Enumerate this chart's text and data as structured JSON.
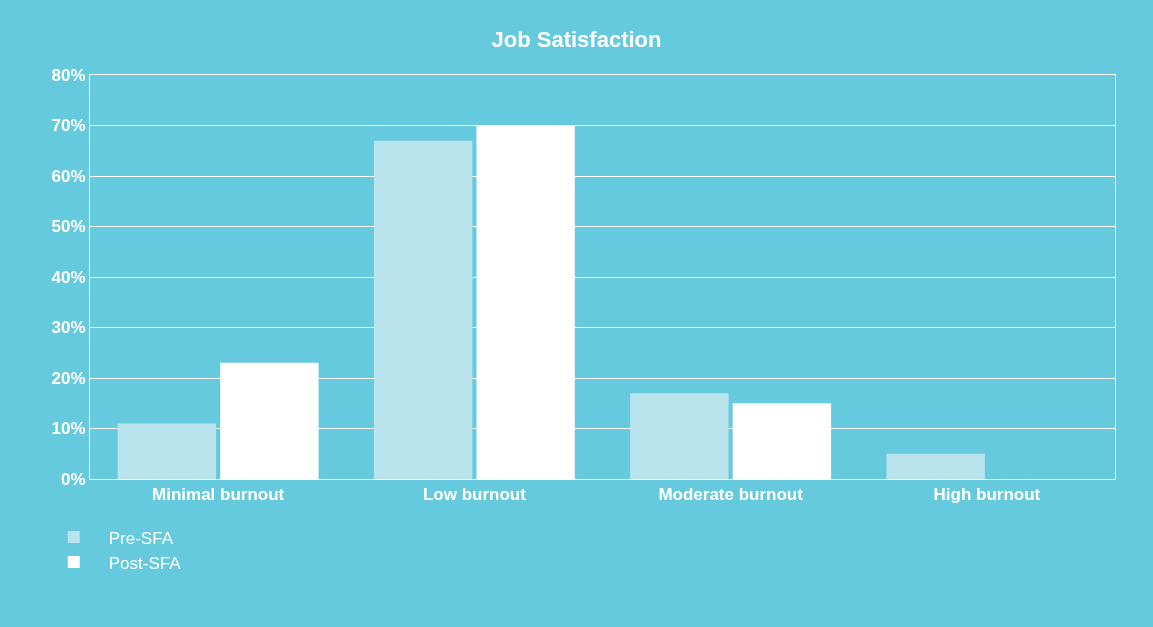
{
  "chart_data": {
    "type": "bar",
    "title": "Job Satisfaction",
    "categories": [
      "Minimal burnout",
      "Low burnout",
      "Moderate burnout",
      "High burnout"
    ],
    "series": [
      {
        "name": "Pre-SFA",
        "color": "#b9e4ed",
        "values": [
          11,
          67,
          17,
          5
        ]
      },
      {
        "name": "Post-SFA",
        "color": "#ffffff",
        "values": [
          23,
          70,
          15,
          0
        ]
      }
    ],
    "ylim": [
      0,
      80
    ],
    "yticks": [
      {
        "value": 0,
        "label": "0%"
      },
      {
        "value": 10,
        "label": "10%"
      },
      {
        "value": 20,
        "label": "20%"
      },
      {
        "value": 30,
        "label": "30%"
      },
      {
        "value": 40,
        "label": "40%"
      },
      {
        "value": 50,
        "label": "50%"
      },
      {
        "value": 60,
        "label": "60%"
      },
      {
        "value": 70,
        "label": "70%"
      },
      {
        "value": 80,
        "label": "80%"
      }
    ],
    "grid": "y",
    "legend": "bottom left"
  }
}
